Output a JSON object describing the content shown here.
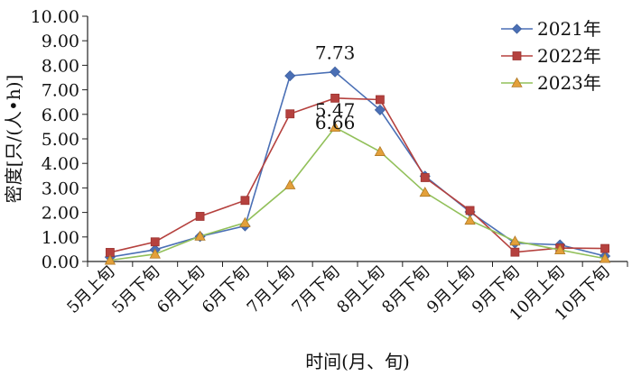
{
  "colors": {
    "series_2021": "#4a6fb5",
    "series_2022": "#b5413e",
    "series_2023": "#92c05a",
    "marker_2023_fill": "#e3a03a"
  },
  "chart_data": {
    "type": "line",
    "title": "",
    "xlabel": "时间(月、旬)",
    "ylabel": "密度[只/(人•h)]",
    "ylim": [
      0,
      10
    ],
    "yticks": [
      "0.00",
      "1.00",
      "2.00",
      "3.00",
      "4.00",
      "5.00",
      "6.00",
      "7.00",
      "8.00",
      "9.00",
      "10.00"
    ],
    "categories": [
      "5月上旬",
      "5月下旬",
      "6月上旬",
      "6月下旬",
      "7月上旬",
      "7月下旬",
      "8月上旬",
      "8月下旬",
      "9月上旬",
      "9月下旬",
      "10月上旬",
      "10月下旬"
    ],
    "series": [
      {
        "name": "2021年",
        "marker": "diamond",
        "values": [
          0.18,
          0.48,
          1.02,
          1.45,
          7.57,
          7.73,
          6.18,
          3.48,
          2.02,
          0.75,
          0.68,
          0.22
        ]
      },
      {
        "name": "2022年",
        "marker": "square",
        "values": [
          0.37,
          0.8,
          1.84,
          2.49,
          6.02,
          6.66,
          6.6,
          3.42,
          2.08,
          0.38,
          0.55,
          0.53
        ]
      },
      {
        "name": "2023年",
        "marker": "triangle",
        "values": [
          0.05,
          0.3,
          1.03,
          1.58,
          3.12,
          5.47,
          4.48,
          2.82,
          1.68,
          0.83,
          0.47,
          0.12
        ]
      }
    ],
    "annotations": [
      {
        "text": "7.73",
        "series": 0,
        "index": 5
      },
      {
        "text": "6.66",
        "series": 1,
        "index": 5
      },
      {
        "text": "5.47",
        "series": 2,
        "index": 5
      }
    ],
    "legend": "top-right",
    "grid": false
  }
}
